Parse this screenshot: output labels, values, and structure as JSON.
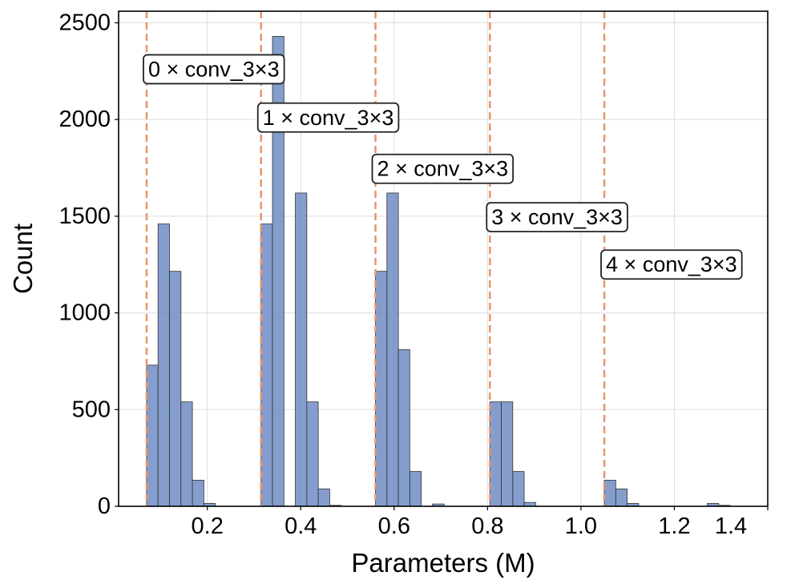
{
  "chart_data": {
    "type": "histogram",
    "title": "",
    "xlabel": "Parameters (M)",
    "ylabel": "Count",
    "xlim": [
      0.01,
      1.4
    ],
    "ylim": [
      0,
      2560
    ],
    "x_ticks": [
      0.2,
      0.4,
      0.6,
      0.8,
      1.0,
      1.2
    ],
    "x_tick_labels": [
      "0.2",
      "0.4",
      "0.6",
      "0.8",
      "1.0",
      "1.2"
    ],
    "x_tick_label_last": "1.4",
    "y_ticks": [
      0,
      500,
      1000,
      1500,
      2000,
      2500
    ],
    "y_tick_labels": [
      "0",
      "500",
      "1000",
      "1500",
      "2000",
      "2500"
    ],
    "grid": true,
    "bar_color": "#6f8cc4",
    "bar_edge_color": "#333333",
    "line_color": "#e8956b",
    "bins": [
      {
        "x0": 0.07,
        "x1": 0.0945,
        "count": 730
      },
      {
        "x0": 0.0945,
        "x1": 0.119,
        "count": 1460
      },
      {
        "x0": 0.119,
        "x1": 0.1435,
        "count": 1215
      },
      {
        "x0": 0.1435,
        "x1": 0.168,
        "count": 540
      },
      {
        "x0": 0.168,
        "x1": 0.1925,
        "count": 135
      },
      {
        "x0": 0.1925,
        "x1": 0.217,
        "count": 15
      },
      {
        "x0": 0.315,
        "x1": 0.3395,
        "count": 1460
      },
      {
        "x0": 0.3395,
        "x1": 0.364,
        "count": 2430
      },
      {
        "x0": 0.3885,
        "x1": 0.413,
        "count": 1620
      },
      {
        "x0": 0.413,
        "x1": 0.4375,
        "count": 540
      },
      {
        "x0": 0.4375,
        "x1": 0.462,
        "count": 90
      },
      {
        "x0": 0.462,
        "x1": 0.4865,
        "count": 5
      },
      {
        "x0": 0.56,
        "x1": 0.5845,
        "count": 1215
      },
      {
        "x0": 0.5845,
        "x1": 0.609,
        "count": 1620
      },
      {
        "x0": 0.609,
        "x1": 0.6335,
        "count": 810
      },
      {
        "x0": 0.6335,
        "x1": 0.658,
        "count": 180
      },
      {
        "x0": 0.682,
        "x1": 0.707,
        "count": 12
      },
      {
        "x0": 0.805,
        "x1": 0.8295,
        "count": 540
      },
      {
        "x0": 0.8295,
        "x1": 0.854,
        "count": 540
      },
      {
        "x0": 0.854,
        "x1": 0.8785,
        "count": 180
      },
      {
        "x0": 0.8785,
        "x1": 0.903,
        "count": 20
      },
      {
        "x0": 1.05,
        "x1": 1.0745,
        "count": 135
      },
      {
        "x0": 1.0745,
        "x1": 1.099,
        "count": 90
      },
      {
        "x0": 1.099,
        "x1": 1.1235,
        "count": 15
      },
      {
        "x0": 1.2705,
        "x1": 1.295,
        "count": 15
      },
      {
        "x0": 1.295,
        "x1": 1.3195,
        "count": 5
      }
    ],
    "vlines": [
      0.07,
      0.315,
      0.56,
      0.805,
      1.05
    ],
    "annotations": [
      {
        "text": "0 × conv_3×3",
        "x": 0.07,
        "y": 2260
      },
      {
        "text": "1 × conv_3×3",
        "x": 0.315,
        "y": 2010
      },
      {
        "text": "2 × conv_3×3",
        "x": 0.56,
        "y": 1745
      },
      {
        "text": "3 × conv_3×3",
        "x": 0.805,
        "y": 1495
      },
      {
        "text": "4 × conv_3×3",
        "x": 1.05,
        "y": 1250
      }
    ]
  }
}
